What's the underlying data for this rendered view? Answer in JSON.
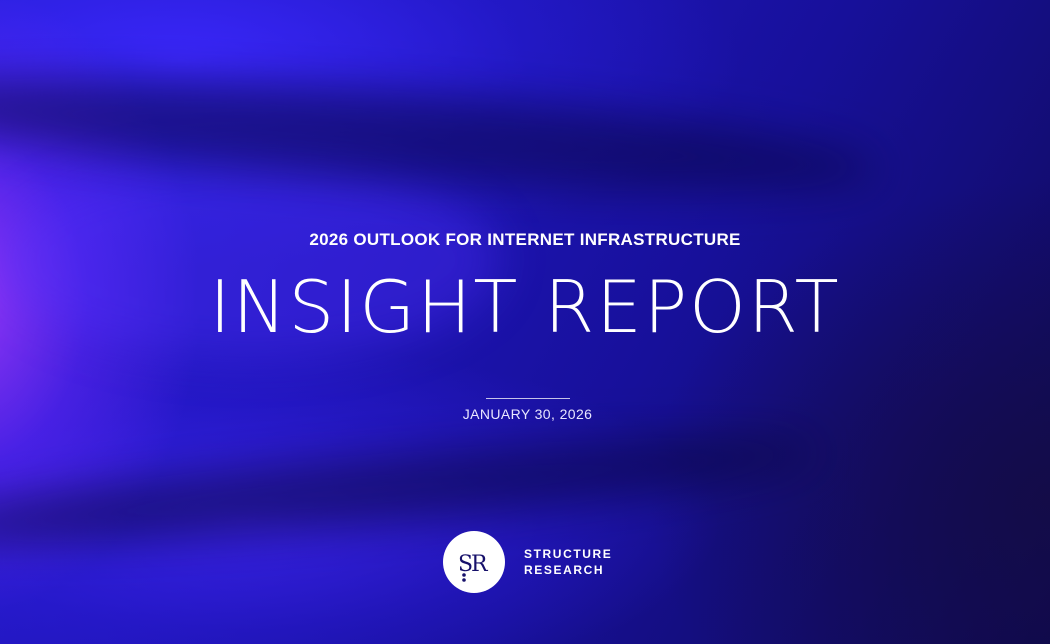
{
  "cover": {
    "subtitle": "2026 OUTLOOK FOR INTERNET INFRASTRUCTURE",
    "title": "INSIGHT REPORT",
    "date": "JANUARY 30, 2026"
  },
  "brand": {
    "monogram": "SR",
    "name_line1": "STRUCTURE",
    "name_line2": "RESEARCH",
    "icon": "structure-research-logo-icon"
  },
  "colors": {
    "background_primary": "#1f15b8",
    "background_dark": "#0d0850",
    "accent_purple": "#aa3cff",
    "text": "#ffffff",
    "logo_mark": "#16106a"
  }
}
